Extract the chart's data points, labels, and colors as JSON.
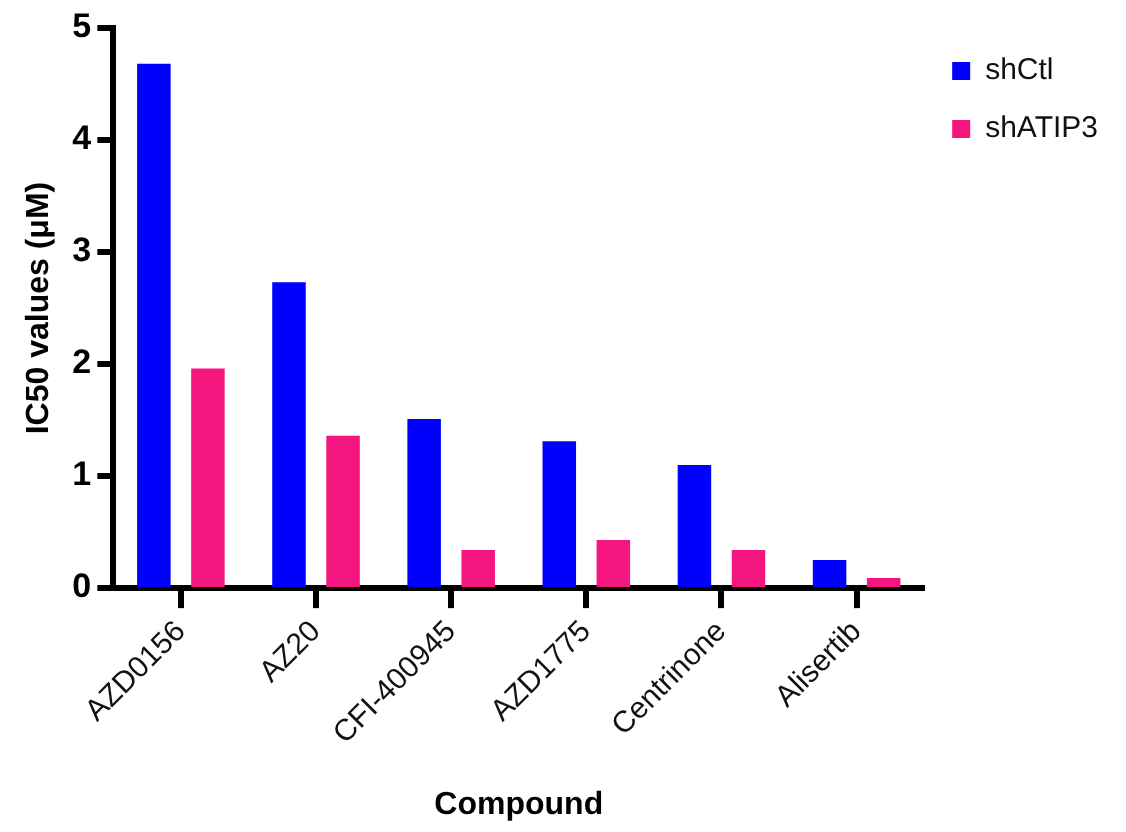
{
  "chart_data": {
    "type": "bar",
    "xlabel": "Compound",
    "ylabel": "IC50 values (μM)",
    "categories": [
      "AZD0156",
      "AZ20",
      "CFI-400945",
      "AZD1775",
      "Centrinone",
      "Alisertib"
    ],
    "series": [
      {
        "name": "shCtl",
        "color": "#0000ff",
        "values": [
          4.68,
          2.73,
          1.51,
          1.31,
          1.1,
          0.25
        ]
      },
      {
        "name": "shATIP3",
        "color": "#f5157f",
        "values": [
          1.96,
          1.36,
          0.34,
          0.43,
          0.34,
          0.09
        ]
      }
    ],
    "ylim": [
      0,
      5
    ],
    "yticks": [
      0,
      1,
      2,
      3,
      4,
      5
    ],
    "grid": false,
    "legend": "top right"
  }
}
